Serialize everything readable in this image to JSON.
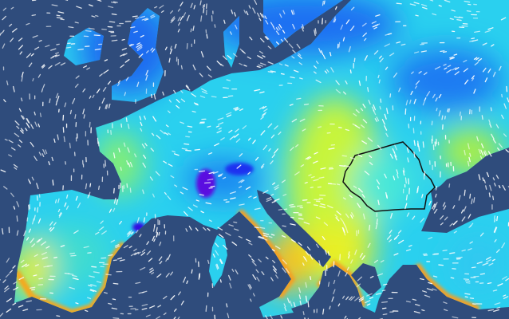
{
  "map": {
    "type": "weather-field-with-wind-streamlines",
    "region": "Europe",
    "highlighted_country_outline": "Romania",
    "colors": {
      "sea": "#2f4c7c",
      "wind_particles": "#ffffff",
      "outline": "#111111",
      "scale": [
        "#6a00d8",
        "#1a3cf0",
        "#1e90f5",
        "#22d3f2",
        "#3ef0a8",
        "#b8f53a",
        "#f5f51e",
        "#f5a81e",
        "#f05a1e"
      ]
    }
  }
}
